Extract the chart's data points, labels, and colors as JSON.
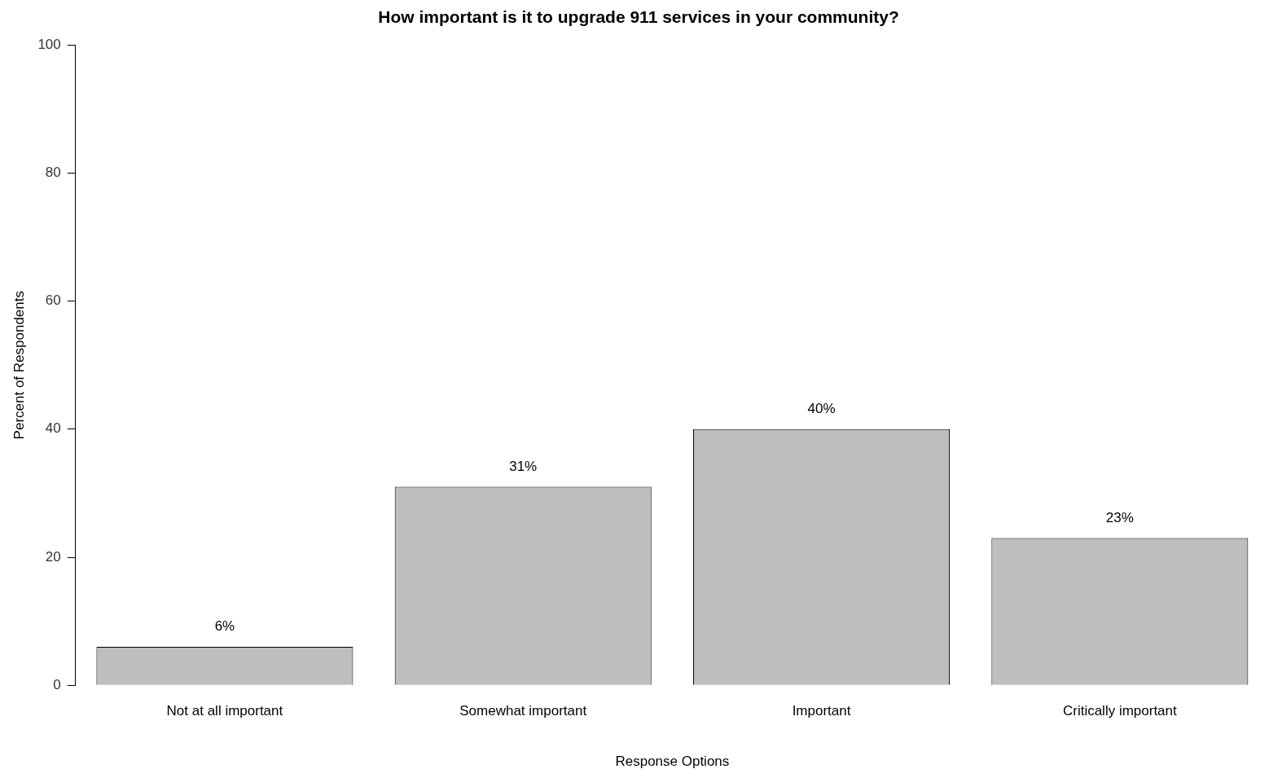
{
  "chart_data": {
    "type": "bar",
    "title": "How important is it to upgrade 911 services in your community?",
    "xlabel": "Response Options",
    "ylabel": "Percent of Respondents",
    "categories": [
      "Not at all important",
      "Somewhat important",
      "Important",
      "Critically important"
    ],
    "values": [
      6,
      31,
      40,
      23
    ],
    "value_labels": [
      "6%",
      "31%",
      "40%",
      "23%"
    ],
    "color": "#bebebe",
    "ylim": [
      0,
      100
    ],
    "yticks": [
      0,
      20,
      40,
      60,
      80,
      100
    ],
    "grid": false,
    "legend": false
  }
}
